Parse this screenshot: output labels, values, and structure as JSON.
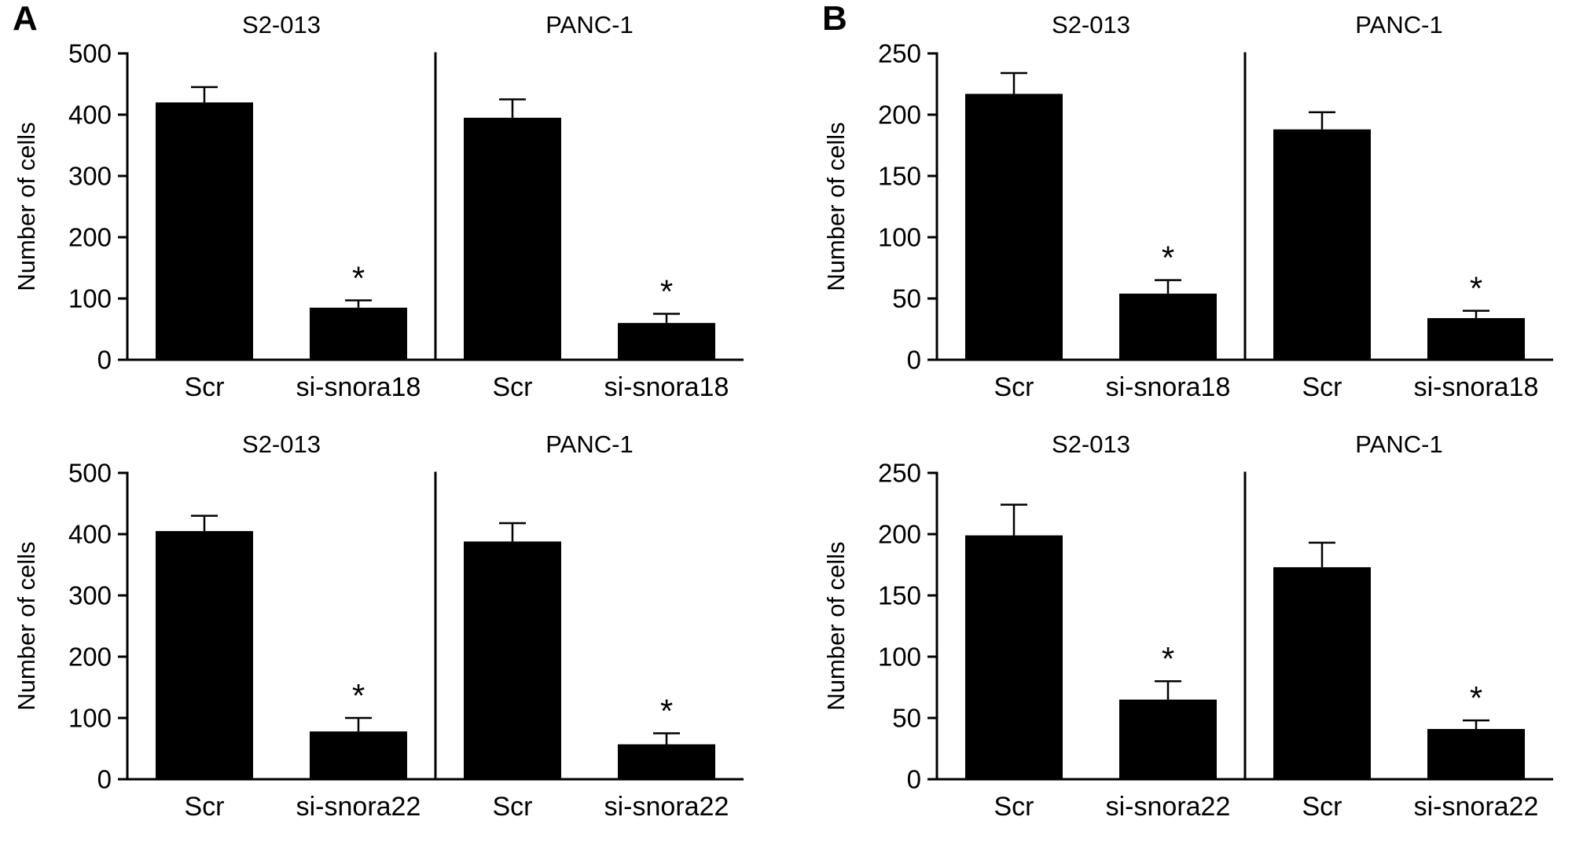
{
  "panel_labels": [
    "A",
    "B"
  ],
  "significance_marker": "*",
  "bar_color": "#000000",
  "axis_color": "#000000",
  "chart_data": [
    {
      "type": "bar",
      "panel": "A",
      "position": "top",
      "ylabel": "Number of cells",
      "ylim": [
        0,
        500
      ],
      "yticks": [
        0,
        100,
        200,
        300,
        400,
        500
      ],
      "groups": [
        {
          "title": "S2-013",
          "categories": [
            "Scr",
            "si-snora18"
          ],
          "values": [
            420,
            85
          ],
          "errors": [
            25,
            12
          ],
          "significant": [
            false,
            true
          ]
        },
        {
          "title": "PANC-1",
          "categories": [
            "Scr",
            "si-snora18"
          ],
          "values": [
            395,
            60
          ],
          "errors": [
            30,
            15
          ],
          "significant": [
            false,
            true
          ]
        }
      ]
    },
    {
      "type": "bar",
      "panel": "A",
      "position": "bottom",
      "ylabel": "Number of cells",
      "ylim": [
        0,
        500
      ],
      "yticks": [
        0,
        100,
        200,
        300,
        400,
        500
      ],
      "groups": [
        {
          "title": "S2-013",
          "categories": [
            "Scr",
            "si-snora22"
          ],
          "values": [
            405,
            78
          ],
          "errors": [
            25,
            22
          ],
          "significant": [
            false,
            true
          ]
        },
        {
          "title": "PANC-1",
          "categories": [
            "Scr",
            "si-snora22"
          ],
          "values": [
            388,
            57
          ],
          "errors": [
            30,
            18
          ],
          "significant": [
            false,
            true
          ]
        }
      ]
    },
    {
      "type": "bar",
      "panel": "B",
      "position": "top",
      "ylabel": "Number of cells",
      "ylim": [
        0,
        250
      ],
      "yticks": [
        0,
        50,
        100,
        150,
        200,
        250
      ],
      "groups": [
        {
          "title": "S2-013",
          "categories": [
            "Scr",
            "si-snora18"
          ],
          "values": [
            217,
            54
          ],
          "errors": [
            17,
            11
          ],
          "significant": [
            false,
            true
          ]
        },
        {
          "title": "PANC-1",
          "categories": [
            "Scr",
            "si-snora18"
          ],
          "values": [
            188,
            34
          ],
          "errors": [
            14,
            6
          ],
          "significant": [
            false,
            true
          ]
        }
      ]
    },
    {
      "type": "bar",
      "panel": "B",
      "position": "bottom",
      "ylabel": "Number of cells",
      "ylim": [
        0,
        250
      ],
      "yticks": [
        0,
        50,
        100,
        150,
        200,
        250
      ],
      "groups": [
        {
          "title": "S2-013",
          "categories": [
            "Scr",
            "si-snora22"
          ],
          "values": [
            199,
            65
          ],
          "errors": [
            25,
            15
          ],
          "significant": [
            false,
            true
          ]
        },
        {
          "title": "PANC-1",
          "categories": [
            "Scr",
            "si-snora22"
          ],
          "values": [
            173,
            41
          ],
          "errors": [
            20,
            7
          ],
          "significant": [
            false,
            true
          ]
        }
      ]
    }
  ]
}
